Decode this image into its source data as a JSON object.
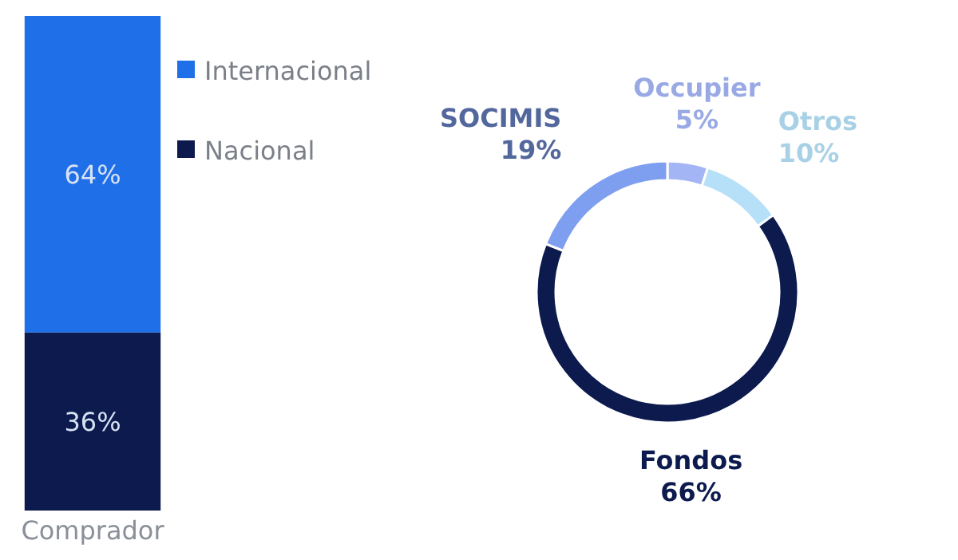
{
  "chart_data": [
    {
      "type": "bar",
      "stacked": true,
      "categories": [
        "Comprador"
      ],
      "legend": "top right",
      "series": [
        {
          "name": "Nacional",
          "color": "#0c1a4d",
          "values": [
            36
          ],
          "value_labels": [
            "36%"
          ]
        },
        {
          "name": "Internacional",
          "color": "#1e6fe8",
          "values": [
            64
          ],
          "value_labels": [
            "64%"
          ]
        }
      ]
    },
    {
      "type": "donut",
      "categories": [
        "Occupier",
        "Otros",
        "Fondos",
        "SOCIMIS"
      ],
      "values": [
        5,
        10,
        66,
        19
      ],
      "value_labels": [
        "5%",
        "10%",
        "66%",
        "19%"
      ],
      "colors": [
        "#a3b5f5",
        "#b5e0f7",
        "#0c1a4d",
        "#7e9ef0"
      ]
    }
  ]
}
